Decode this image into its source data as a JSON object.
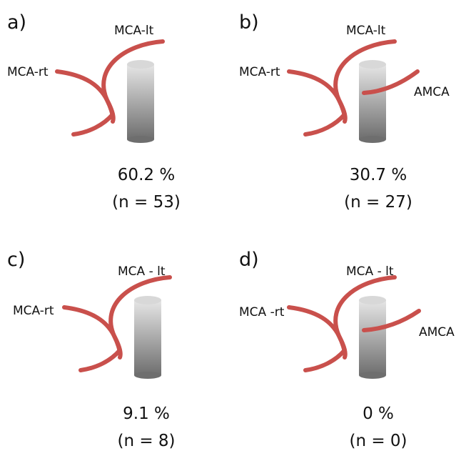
{
  "panels": [
    {
      "label": "a)",
      "vessels": [
        "MCA-lt",
        "MCA-rt"
      ],
      "percent": "60.2 %",
      "count": "(n = 53)"
    },
    {
      "label": "b)",
      "vessels": [
        "MCA-lt",
        "MCA-rt",
        "AMCA"
      ],
      "percent": "30.7 %",
      "count": "(n = 27)"
    },
    {
      "label": "c)",
      "vessels": [
        "MCA - lt",
        "MCA-rt"
      ],
      "percent": "9.1 %",
      "count": "(n = 8)"
    },
    {
      "label": "d)",
      "vessels": [
        "MCA - lt",
        "MCA -rt",
        "AMCA"
      ],
      "percent": "0 %",
      "count": "(n = 0)"
    }
  ]
}
